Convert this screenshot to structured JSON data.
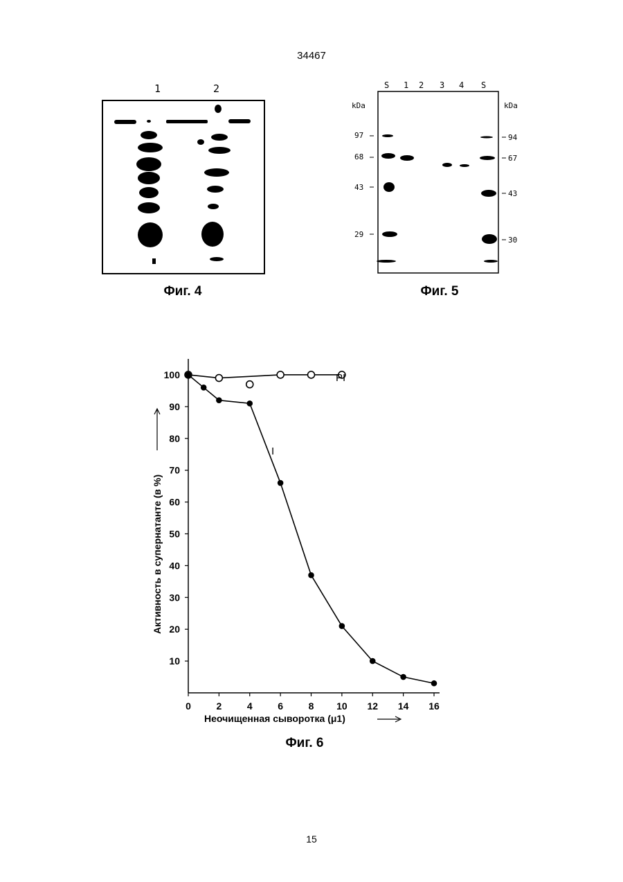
{
  "header": {
    "doc_number": "34467"
  },
  "footer": {
    "page_number": "15"
  },
  "fig4": {
    "caption": "Фиг. 4",
    "lane_labels": [
      "1",
      "2"
    ]
  },
  "fig5": {
    "caption": "Фиг. 5",
    "lane_labels": [
      "S",
      "1",
      "2",
      "3",
      "4",
      "S"
    ],
    "unit_left": "kDa",
    "unit_right": "kDa",
    "markers_left": [
      "97",
      "68",
      "43",
      "29"
    ],
    "markers_right": [
      "94",
      "67",
      "43",
      "30"
    ]
  },
  "fig6": {
    "caption": "Фиг. 6",
    "chart_data": {
      "type": "line",
      "xlabel": "Неочищенная сыворотка (μ1)",
      "ylabel": "Активность в супернатанте (в %)",
      "x_ticks": [
        "0",
        "2",
        "4",
        "6",
        "8",
        "10",
        "12",
        "14",
        "16"
      ],
      "y_ticks": [
        "10",
        "20",
        "30",
        "40",
        "50",
        "60",
        "70",
        "80",
        "90",
        "100"
      ],
      "xlim": [
        0,
        16
      ],
      "ylim": [
        0,
        105
      ],
      "series": [
        {
          "name": "PI",
          "marker": "open-circle",
          "x": [
            0,
            2,
            6,
            8,
            10
          ],
          "y": [
            100,
            99,
            100,
            100,
            100
          ]
        },
        {
          "name": "I",
          "marker": "filled-circle",
          "x": [
            0,
            1,
            2,
            4,
            6,
            8,
            10,
            12,
            14,
            16
          ],
          "y": [
            100,
            96,
            92,
            91,
            66,
            37,
            21,
            10,
            5,
            3
          ]
        }
      ],
      "outlier": {
        "x": 4,
        "y": 97,
        "marker": "open-circle"
      }
    }
  }
}
